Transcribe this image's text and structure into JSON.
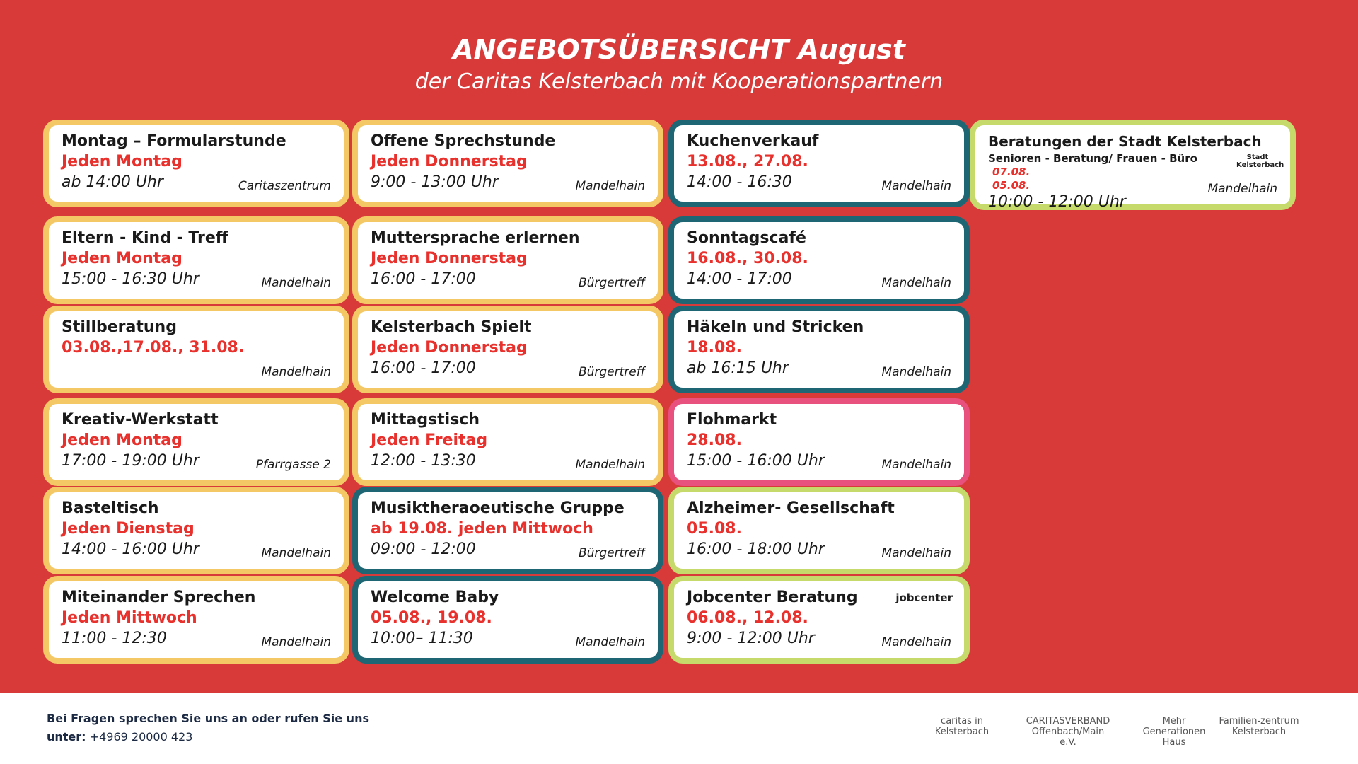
{
  "header": {
    "title": "ANGEBOTSÜBERSICHT  August",
    "subtitle": "der Caritas Kelsterbach mit Kooperationspartnern"
  },
  "columns": [
    {
      "cards": [
        {
          "title": "Montag – Formularstunde",
          "when": "Jeden Montag",
          "time": "ab 14:00 Uhr",
          "place": "Caritaszentrum",
          "border": "#f3c865"
        },
        {
          "title": "Eltern - Kind - Treff",
          "when": "Jeden Montag",
          "time": "15:00 - 16:30 Uhr",
          "place": "Mandelhain",
          "border": "#f3c865"
        },
        {
          "title": "Stillberatung",
          "when": "03.08.,17.08., 31.08.",
          "place": "Mandelhain",
          "border": "#f3c865"
        },
        {
          "title": "Kreativ-Werkstatt",
          "when": "Jeden Montag",
          "time": "17:00 - 19:00 Uhr",
          "place": "Pfarrgasse 2",
          "border": "#f3c865"
        },
        {
          "title": "Basteltisch",
          "when": "Jeden Dienstag",
          "time": "14:00 - 16:00 Uhr",
          "place": "Mandelhain",
          "border": "#f3c865"
        },
        {
          "title": "Miteinander Sprechen",
          "when": "Jeden Mittwoch",
          "time": "11:00 - 12:30",
          "place": "Mandelhain",
          "border": "#f3c865"
        }
      ]
    },
    {
      "cards": [
        {
          "title": "Offene Sprechstunde",
          "when": "Jeden Donnerstag",
          "time": "9:00 - 13:00 Uhr",
          "place": "Mandelhain",
          "border": "#f3c865"
        },
        {
          "title": "Muttersprache erlernen",
          "when": "Jeden Donnerstag",
          "time": "16:00 - 17:00",
          "place": "Bürgertreff",
          "border": "#f3c865"
        },
        {
          "title": "Kelsterbach Spielt",
          "when": "Jeden Donnerstag",
          "time": "16:00 - 17:00",
          "place": "Bürgertreff",
          "border": "#f3c865"
        },
        {
          "title": "Mittagstisch",
          "when": "Jeden Freitag",
          "time": "12:00 - 13:30",
          "place": "Mandelhain",
          "border": "#f3c865"
        },
        {
          "title": "Musiktheraoeutische Gruppe",
          "when": "ab 19.08. jeden Mittwoch",
          "time": "09:00 - 12:00",
          "place": "Bürgertreff",
          "border": "#1e6673"
        },
        {
          "title": "Welcome Baby",
          "when": "05.08., 19.08.",
          "time": "10:00– 11:30",
          "place": "Mandelhain",
          "border": "#1e6673"
        }
      ]
    },
    {
      "cards": [
        {
          "title": "Kuchenverkauf",
          "when": "13.08., 27.08.",
          "time": "14:00 - 16:30",
          "place": "Mandelhain",
          "border": "#1e6673"
        },
        {
          "title": "Sonntagscafé",
          "when": "16.08., 30.08.",
          "time": "14:00 - 17:00",
          "place": "Mandelhain",
          "border": "#1e6673"
        },
        {
          "title": "Häkeln und Stricken",
          "when": "18.08.",
          "time": "ab 16:15 Uhr",
          "place": "Mandelhain",
          "border": "#1e6673"
        },
        {
          "title": "Flohmarkt",
          "when": "28.08.",
          "time": "15:00 - 16:00 Uhr",
          "place": "Mandelhain",
          "border": "#e8507e"
        },
        {
          "title": "Alzheimer- Gesellschaft",
          "when": "05.08.",
          "time": "16:00 - 18:00 Uhr",
          "place": "Mandelhain",
          "border": "#c6d96b"
        },
        {
          "title": "Jobcenter Beratung",
          "logo": "jobcenter",
          "when": "06.08., 12.08.",
          "time": "9:00 - 12:00 Uhr",
          "place": "Mandelhain",
          "border": "#c6d96b"
        }
      ]
    },
    {
      "cards": [
        {
          "title": "Beratungen der Stadt Kelsterbach",
          "subtitle": "Senioren - Beratung/ Frauen - Büro",
          "dates": [
            "07.08.",
            "05.08."
          ],
          "logo": "Stadt Kelsterbach",
          "time": "10:00 - 12:00 Uhr",
          "place": "Mandelhain",
          "border": "#c6d96b"
        }
      ]
    }
  ],
  "footer": {
    "question": "Bei Fragen sprechen Sie uns an oder rufen Sie uns",
    "phone_label": "unter:",
    "phone": "+4969 20000 423",
    "logos": [
      "caritas in Kelsterbach",
      "CARITASVERBAND Offenbach/Main e.V.",
      "Mehr Generationen Haus",
      "Familien-zentrum Kelsterbach"
    ]
  }
}
